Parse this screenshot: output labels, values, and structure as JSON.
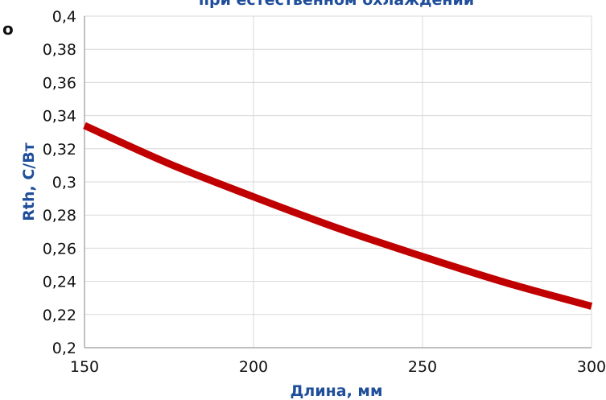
{
  "chart_data": {
    "type": "line",
    "title": "при естественном охлаждении",
    "edge_glyph": "о",
    "xlabel": "Длина, мм",
    "ylabel": "Rth, C/Вт",
    "xlim": [
      150,
      300
    ],
    "ylim": [
      0.2,
      0.4
    ],
    "x_ticks": [
      150,
      200,
      250,
      300
    ],
    "x_tick_labels": [
      "150",
      "200",
      "250",
      "300"
    ],
    "y_ticks": [
      0.2,
      0.22,
      0.24,
      0.26,
      0.28,
      0.3,
      0.32,
      0.34,
      0.36,
      0.38,
      0.4
    ],
    "y_tick_labels": [
      "0,2",
      "0,22",
      "0,24",
      "0,26",
      "0,28",
      "0,3",
      "0,32",
      "0,34",
      "0,36",
      "0,38",
      "0,4"
    ],
    "grid": true,
    "legend": "none",
    "series": [
      {
        "color": "#c00000",
        "x": [
          150,
          175,
          200,
          225,
          250,
          275,
          300
        ],
        "y": [
          0.334,
          0.311,
          0.291,
          0.272,
          0.255,
          0.239,
          0.225
        ]
      }
    ],
    "colors": {
      "title": "#1f4e9a",
      "axis_title": "#1f4e9a",
      "grid": "#d9d9d9",
      "axis": "#9a9a9a"
    }
  }
}
